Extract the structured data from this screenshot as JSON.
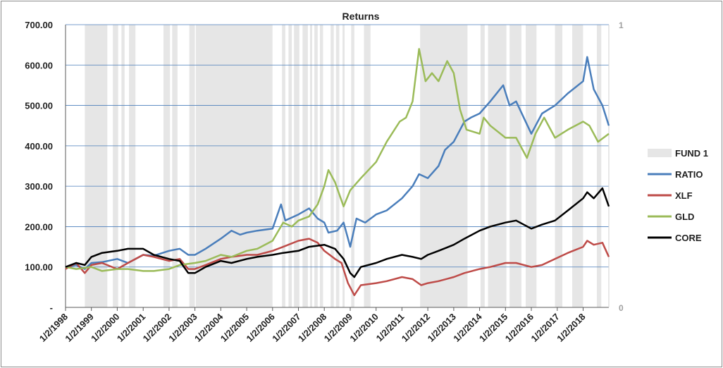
{
  "chart_data": {
    "type": "line",
    "title": "Returns",
    "xlabel": "",
    "ylabel": "",
    "y_range": [
      0,
      700
    ],
    "y_ticks": [
      "-",
      "100.00",
      "200.00",
      "300.00",
      "400.00",
      "500.00",
      "600.00",
      "700.00"
    ],
    "y_secondary_range": [
      0,
      1
    ],
    "y_secondary_ticks": [
      "0",
      "1"
    ],
    "x_range": [
      "1998-01-02",
      "2018-12-31"
    ],
    "x_tick_labels": [
      "1/2/1998",
      "1/2/1999",
      "1/2/2000",
      "1/2/2001",
      "1/2/2002",
      "1/2/2003",
      "1/2/2004",
      "1/2/2005",
      "1/2/2006",
      "1/2/2007",
      "1/2/2008",
      "1/2/2009",
      "1/2/2010",
      "1/2/2011",
      "1/2/2012",
      "1/2/2013",
      "1/2/2014",
      "1/2/2015",
      "1/2/2016",
      "1/2/2017",
      "1/2/2018"
    ],
    "grid": true,
    "legend_position": "right",
    "fund_regions_label": "FUND 1",
    "fund_regions_color": "#e6e6e6",
    "fund_regions": [
      [
        "1998-10-01",
        "1999-08-15"
      ],
      [
        "1999-11-01",
        "2000-01-15"
      ],
      [
        "2000-03-01",
        "2000-04-15"
      ],
      [
        "2000-06-15",
        "2000-09-15"
      ],
      [
        "2001-10-15",
        "2002-01-15"
      ],
      [
        "2002-02-15",
        "2002-05-01"
      ],
      [
        "2002-10-15",
        "2003-01-01"
      ],
      [
        "2003-01-15",
        "2006-01-01"
      ],
      [
        "2006-05-15",
        "2006-07-01"
      ],
      [
        "2006-08-15",
        "2006-10-01"
      ],
      [
        "2006-11-01",
        "2007-01-15"
      ],
      [
        "2007-03-01",
        "2007-05-15"
      ],
      [
        "2007-06-15",
        "2007-07-15"
      ],
      [
        "2007-08-15",
        "2007-10-01"
      ],
      [
        "2007-11-01",
        "2007-12-15"
      ],
      [
        "2008-04-01",
        "2008-05-15"
      ],
      [
        "2008-06-15",
        "2008-08-01"
      ],
      [
        "2008-09-15",
        "2008-10-15"
      ],
      [
        "2009-01-15",
        "2009-03-01"
      ],
      [
        "2009-07-15",
        "2009-10-15"
      ],
      [
        "2011-09-15",
        "2013-07-15"
      ],
      [
        "2014-01-15",
        "2014-03-15"
      ],
      [
        "2014-05-01",
        "2015-01-15"
      ],
      [
        "2015-03-01",
        "2015-08-15"
      ],
      [
        "2015-10-15",
        "2016-03-15"
      ],
      [
        "2016-12-01",
        "2017-03-15"
      ],
      [
        "2017-08-01",
        "2018-01-01"
      ],
      [
        "2018-07-15",
        "2018-09-15"
      ]
    ],
    "series": [
      {
        "name": "RATIO",
        "color": "#4a7ebb",
        "points": [
          [
            "1998-01-02",
            100
          ],
          [
            "1998-06-01",
            105
          ],
          [
            "1998-10-01",
            95
          ],
          [
            "1999-01-02",
            110
          ],
          [
            "1999-06-01",
            112
          ],
          [
            "2000-01-02",
            120
          ],
          [
            "2000-06-01",
            110
          ],
          [
            "2001-01-02",
            130
          ],
          [
            "2001-06-01",
            128
          ],
          [
            "2002-01-02",
            140
          ],
          [
            "2002-06-01",
            145
          ],
          [
            "2002-10-01",
            130
          ],
          [
            "2003-01-02",
            130
          ],
          [
            "2003-06-01",
            145
          ],
          [
            "2004-01-02",
            170
          ],
          [
            "2004-06-01",
            190
          ],
          [
            "2004-10-01",
            180
          ],
          [
            "2005-01-02",
            185
          ],
          [
            "2005-06-01",
            190
          ],
          [
            "2006-01-02",
            195
          ],
          [
            "2006-05-01",
            255
          ],
          [
            "2006-07-01",
            215
          ],
          [
            "2007-01-02",
            230
          ],
          [
            "2007-06-01",
            245
          ],
          [
            "2007-10-01",
            220
          ],
          [
            "2008-01-02",
            210
          ],
          [
            "2008-03-01",
            185
          ],
          [
            "2008-07-01",
            190
          ],
          [
            "2008-10-01",
            210
          ],
          [
            "2009-01-02",
            150
          ],
          [
            "2009-04-01",
            220
          ],
          [
            "2009-08-01",
            210
          ],
          [
            "2010-01-02",
            230
          ],
          [
            "2010-06-01",
            240
          ],
          [
            "2011-01-02",
            270
          ],
          [
            "2011-06-01",
            300
          ],
          [
            "2011-09-01",
            330
          ],
          [
            "2012-01-02",
            320
          ],
          [
            "2012-06-01",
            350
          ],
          [
            "2012-09-01",
            390
          ],
          [
            "2013-01-02",
            410
          ],
          [
            "2013-06-01",
            460
          ],
          [
            "2013-09-01",
            470
          ],
          [
            "2014-01-02",
            480
          ],
          [
            "2014-06-01",
            510
          ],
          [
            "2014-12-01",
            550
          ],
          [
            "2015-03-01",
            500
          ],
          [
            "2015-06-01",
            510
          ],
          [
            "2016-01-02",
            430
          ],
          [
            "2016-06-01",
            480
          ],
          [
            "2016-12-01",
            500
          ],
          [
            "2017-06-01",
            530
          ],
          [
            "2018-01-02",
            560
          ],
          [
            "2018-03-01",
            620
          ],
          [
            "2018-06-01",
            540
          ],
          [
            "2018-10-01",
            500
          ],
          [
            "2018-12-31",
            450
          ]
        ]
      },
      {
        "name": "XLF",
        "color": "#be4b48",
        "points": [
          [
            "1998-01-02",
            95
          ],
          [
            "1998-06-01",
            110
          ],
          [
            "1998-10-01",
            85
          ],
          [
            "1999-01-02",
            105
          ],
          [
            "1999-06-01",
            110
          ],
          [
            "2000-01-02",
            95
          ],
          [
            "2000-06-01",
            110
          ],
          [
            "2001-01-02",
            130
          ],
          [
            "2001-06-01",
            125
          ],
          [
            "2002-01-02",
            115
          ],
          [
            "2002-06-01",
            120
          ],
          [
            "2002-10-01",
            95
          ],
          [
            "2003-01-02",
            95
          ],
          [
            "2003-06-01",
            105
          ],
          [
            "2004-01-02",
            120
          ],
          [
            "2004-06-01",
            125
          ],
          [
            "2005-01-02",
            130
          ],
          [
            "2005-06-01",
            130
          ],
          [
            "2006-01-02",
            140
          ],
          [
            "2006-06-01",
            150
          ],
          [
            "2007-01-02",
            165
          ],
          [
            "2007-06-01",
            170
          ],
          [
            "2007-10-01",
            160
          ],
          [
            "2008-01-02",
            140
          ],
          [
            "2008-06-01",
            120
          ],
          [
            "2008-09-01",
            110
          ],
          [
            "2008-12-01",
            60
          ],
          [
            "2009-03-01",
            30
          ],
          [
            "2009-06-01",
            55
          ],
          [
            "2010-01-02",
            60
          ],
          [
            "2010-06-01",
            65
          ],
          [
            "2011-01-02",
            75
          ],
          [
            "2011-06-01",
            70
          ],
          [
            "2011-10-01",
            55
          ],
          [
            "2012-01-02",
            60
          ],
          [
            "2012-06-01",
            65
          ],
          [
            "2013-01-02",
            75
          ],
          [
            "2013-06-01",
            85
          ],
          [
            "2014-01-02",
            95
          ],
          [
            "2014-06-01",
            100
          ],
          [
            "2015-01-02",
            110
          ],
          [
            "2015-06-01",
            110
          ],
          [
            "2016-01-02",
            100
          ],
          [
            "2016-06-01",
            105
          ],
          [
            "2016-12-01",
            120
          ],
          [
            "2017-06-01",
            135
          ],
          [
            "2018-01-02",
            150
          ],
          [
            "2018-03-01",
            165
          ],
          [
            "2018-06-01",
            155
          ],
          [
            "2018-10-01",
            160
          ],
          [
            "2018-12-31",
            125
          ]
        ]
      },
      {
        "name": "GLD",
        "color": "#9bbb59",
        "points": [
          [
            "1998-01-02",
            100
          ],
          [
            "1998-06-01",
            95
          ],
          [
            "1999-01-02",
            100
          ],
          [
            "1999-06-01",
            90
          ],
          [
            "2000-01-02",
            95
          ],
          [
            "2000-06-01",
            95
          ],
          [
            "2001-01-02",
            90
          ],
          [
            "2001-06-01",
            90
          ],
          [
            "2002-01-02",
            95
          ],
          [
            "2002-06-01",
            105
          ],
          [
            "2003-01-02",
            110
          ],
          [
            "2003-06-01",
            115
          ],
          [
            "2004-01-02",
            130
          ],
          [
            "2004-06-01",
            125
          ],
          [
            "2005-01-02",
            140
          ],
          [
            "2005-06-01",
            145
          ],
          [
            "2006-01-02",
            165
          ],
          [
            "2006-06-01",
            210
          ],
          [
            "2006-10-01",
            200
          ],
          [
            "2007-01-02",
            215
          ],
          [
            "2007-06-01",
            225
          ],
          [
            "2007-10-01",
            255
          ],
          [
            "2008-01-02",
            300
          ],
          [
            "2008-03-01",
            340
          ],
          [
            "2008-06-01",
            310
          ],
          [
            "2008-10-01",
            250
          ],
          [
            "2009-01-02",
            290
          ],
          [
            "2009-06-01",
            320
          ],
          [
            "2010-01-02",
            360
          ],
          [
            "2010-06-01",
            410
          ],
          [
            "2010-12-01",
            460
          ],
          [
            "2011-03-01",
            470
          ],
          [
            "2011-06-01",
            510
          ],
          [
            "2011-09-01",
            640
          ],
          [
            "2011-12-01",
            560
          ],
          [
            "2012-03-01",
            580
          ],
          [
            "2012-06-01",
            560
          ],
          [
            "2012-10-01",
            610
          ],
          [
            "2013-01-02",
            580
          ],
          [
            "2013-04-01",
            490
          ],
          [
            "2013-07-01",
            440
          ],
          [
            "2014-01-02",
            430
          ],
          [
            "2014-03-01",
            470
          ],
          [
            "2014-06-01",
            450
          ],
          [
            "2015-01-02",
            420
          ],
          [
            "2015-06-01",
            420
          ],
          [
            "2015-11-01",
            370
          ],
          [
            "2016-03-01",
            430
          ],
          [
            "2016-07-01",
            470
          ],
          [
            "2016-12-01",
            420
          ],
          [
            "2017-06-01",
            440
          ],
          [
            "2018-01-02",
            460
          ],
          [
            "2018-04-01",
            450
          ],
          [
            "2018-08-01",
            410
          ],
          [
            "2018-12-31",
            430
          ]
        ]
      },
      {
        "name": "CORE",
        "color": "#000000",
        "points": [
          [
            "1998-01-02",
            100
          ],
          [
            "1998-06-01",
            110
          ],
          [
            "1998-10-01",
            105
          ],
          [
            "1999-01-02",
            125
          ],
          [
            "1999-06-01",
            135
          ],
          [
            "2000-01-02",
            140
          ],
          [
            "2000-06-01",
            145
          ],
          [
            "2001-01-02",
            145
          ],
          [
            "2001-06-01",
            130
          ],
          [
            "2002-01-02",
            120
          ],
          [
            "2002-06-01",
            115
          ],
          [
            "2002-10-01",
            85
          ],
          [
            "2003-01-02",
            85
          ],
          [
            "2003-06-01",
            100
          ],
          [
            "2004-01-02",
            115
          ],
          [
            "2004-06-01",
            110
          ],
          [
            "2005-01-02",
            120
          ],
          [
            "2005-06-01",
            125
          ],
          [
            "2006-01-02",
            130
          ],
          [
            "2006-06-01",
            135
          ],
          [
            "2007-01-02",
            140
          ],
          [
            "2007-06-01",
            150
          ],
          [
            "2008-01-02",
            155
          ],
          [
            "2008-06-01",
            145
          ],
          [
            "2008-10-01",
            120
          ],
          [
            "2009-01-02",
            85
          ],
          [
            "2009-03-01",
            75
          ],
          [
            "2009-06-01",
            100
          ],
          [
            "2010-01-02",
            110
          ],
          [
            "2010-06-01",
            120
          ],
          [
            "2011-01-02",
            130
          ],
          [
            "2011-06-01",
            125
          ],
          [
            "2011-10-01",
            120
          ],
          [
            "2012-01-02",
            130
          ],
          [
            "2012-06-01",
            140
          ],
          [
            "2013-01-02",
            155
          ],
          [
            "2013-06-01",
            170
          ],
          [
            "2014-01-02",
            190
          ],
          [
            "2014-06-01",
            200
          ],
          [
            "2015-01-02",
            210
          ],
          [
            "2015-06-01",
            215
          ],
          [
            "2016-01-02",
            195
          ],
          [
            "2016-06-01",
            205
          ],
          [
            "2016-12-01",
            215
          ],
          [
            "2017-06-01",
            240
          ],
          [
            "2018-01-02",
            270
          ],
          [
            "2018-03-01",
            285
          ],
          [
            "2018-06-01",
            270
          ],
          [
            "2018-10-01",
            295
          ],
          [
            "2018-12-31",
            250
          ]
        ]
      }
    ]
  }
}
